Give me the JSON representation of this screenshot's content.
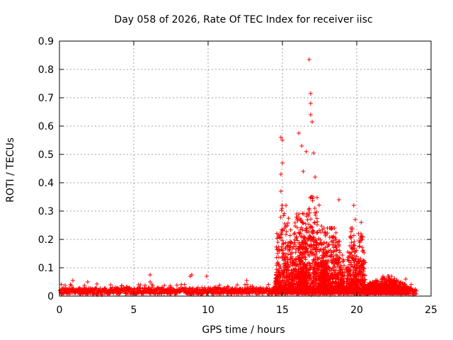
{
  "chart_data": {
    "type": "scatter",
    "title": "Day 058 of 2026, Rate Of TEC Index for receiver iisc",
    "xlabel": "GPS time / hours",
    "ylabel": "ROTI / TECUs",
    "xlim": [
      0,
      25
    ],
    "ylim": [
      0,
      0.9
    ],
    "xticks": [
      0,
      5,
      10,
      15,
      20,
      25
    ],
    "yticks": [
      0,
      0.1,
      0.2,
      0.3,
      0.4,
      0.5,
      0.6,
      0.7,
      0.8,
      0.9
    ],
    "grid": true,
    "marker": "+",
    "color": "#ff0000",
    "data_density": "approx. 8 samples per minute, 0 to 24 h",
    "baseline": {
      "mean": 0.018,
      "spread": 0.012
    },
    "highlights": [
      {
        "x": 0.9,
        "y": 0.055
      },
      {
        "x": 1.9,
        "y": 0.05
      },
      {
        "x": 6.1,
        "y": 0.075
      },
      {
        "x": 6.1,
        "y": 0.05
      },
      {
        "x": 8.8,
        "y": 0.07
      },
      {
        "x": 8.9,
        "y": 0.075
      },
      {
        "x": 9.9,
        "y": 0.07
      },
      {
        "x": 12.6,
        "y": 0.055
      },
      {
        "x": 14.9,
        "y": 0.56
      },
      {
        "x": 15.0,
        "y": 0.55
      },
      {
        "x": 15.0,
        "y": 0.47
      },
      {
        "x": 14.9,
        "y": 0.43
      },
      {
        "x": 14.9,
        "y": 0.37
      },
      {
        "x": 16.1,
        "y": 0.575
      },
      {
        "x": 16.3,
        "y": 0.53
      },
      {
        "x": 16.4,
        "y": 0.44
      },
      {
        "x": 16.8,
        "y": 0.835
      },
      {
        "x": 16.9,
        "y": 0.715
      },
      {
        "x": 16.9,
        "y": 0.68
      },
      {
        "x": 16.9,
        "y": 0.64
      },
      {
        "x": 17.0,
        "y": 0.615
      },
      {
        "x": 17.1,
        "y": 0.505
      },
      {
        "x": 16.6,
        "y": 0.51
      },
      {
        "x": 17.2,
        "y": 0.42
      },
      {
        "x": 18.8,
        "y": 0.34
      },
      {
        "x": 19.8,
        "y": 0.32
      },
      {
        "x": 19.9,
        "y": 0.27
      },
      {
        "x": 20.3,
        "y": 0.26
      },
      {
        "x": 21.6,
        "y": 0.045
      },
      {
        "x": 23.3,
        "y": 0.06
      }
    ],
    "activity_bursts": [
      {
        "x_start": 14.5,
        "x_end": 15.7,
        "peak": 0.3
      },
      {
        "x_start": 15.6,
        "x_end": 16.7,
        "peak": 0.27
      },
      {
        "x_start": 16.0,
        "x_end": 18.0,
        "peak": 0.33
      },
      {
        "x_start": 17.5,
        "x_end": 19.2,
        "peak": 0.22
      },
      {
        "x_start": 19.3,
        "x_end": 20.0,
        "peak": 0.22
      },
      {
        "x_start": 19.9,
        "x_end": 20.6,
        "peak": 0.2
      },
      {
        "x_start": 20.5,
        "x_end": 23.5,
        "peak": 0.05
      }
    ]
  }
}
